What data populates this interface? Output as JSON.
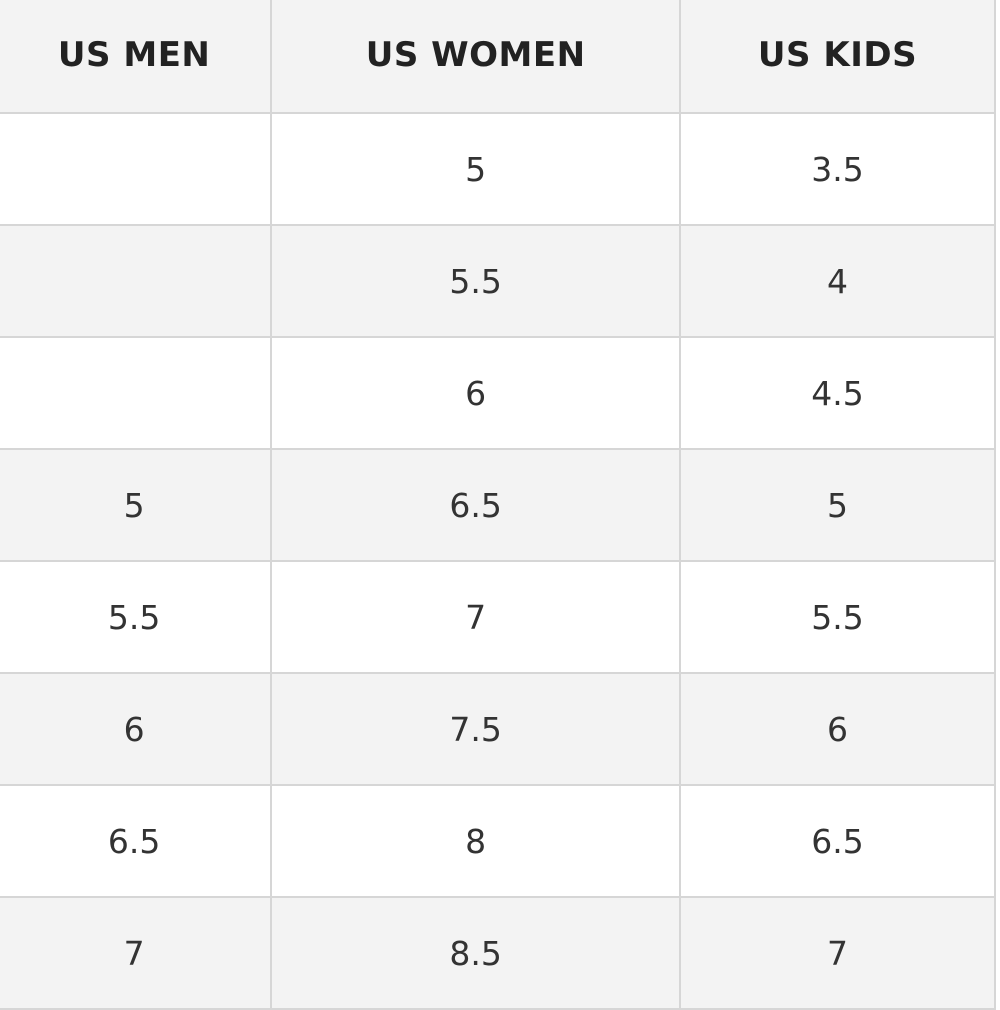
{
  "table": {
    "headers": [
      "US MEN",
      "US WOMEN",
      "US KIDS"
    ],
    "rows": [
      [
        "",
        "5",
        "3.5"
      ],
      [
        "",
        "5.5",
        "4"
      ],
      [
        "",
        "6",
        "4.5"
      ],
      [
        "5",
        "6.5",
        "5"
      ],
      [
        "5.5",
        "7",
        "5.5"
      ],
      [
        "6",
        "7.5",
        "6"
      ],
      [
        "6.5",
        "8",
        "6.5"
      ],
      [
        "7",
        "8.5",
        "7"
      ]
    ]
  }
}
